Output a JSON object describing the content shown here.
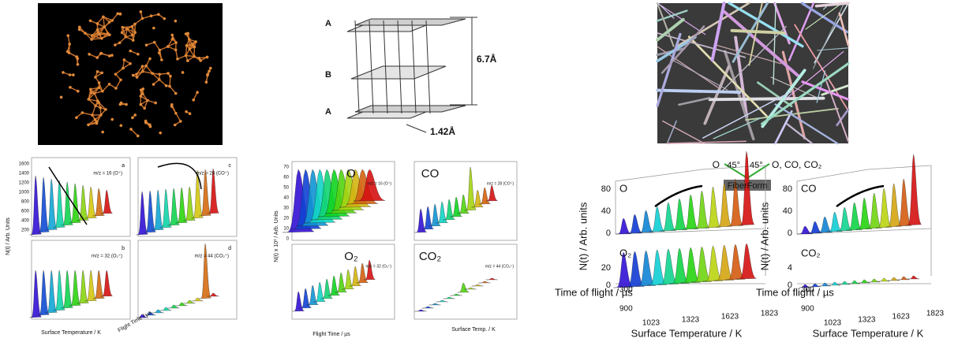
{
  "graphite": {
    "layer_labels": [
      "A",
      "B",
      "A"
    ],
    "interlayer_spacing": "6.7Å",
    "bond_length": "1.42Å"
  },
  "panel_a": {
    "subplots": [
      {
        "letter": "a",
        "label": "m/z = 16 (O⁺)"
      },
      {
        "letter": "c",
        "label": "m/z = 28 (CO⁺)"
      },
      {
        "letter": "b",
        "label": "m/z = 32 (O₂⁺)"
      },
      {
        "letter": "d",
        "label": "m/z = 44 (CO₂⁺)"
      }
    ],
    "y_ticks": [
      "1600",
      "1400",
      "1200",
      "1000",
      "800",
      "600",
      "400",
      "200"
    ],
    "y_axis_label": "N(t) / Arb. Units",
    "x_axis_label": "Surface Temperature / K",
    "z_axis_label": "Flight Time / µs"
  },
  "panel_b": {
    "species": [
      "O",
      "CO",
      "O₂",
      "CO₂"
    ],
    "labels": [
      "m/z = 16 (O⁺)",
      "m/z = 28 (CO⁺)",
      "m/z = 32 (O₂⁺)",
      "m/z = 44 (CO₂⁺)"
    ],
    "y_ticks": [
      "70",
      "60",
      "50",
      "40",
      "30",
      "20",
      "10",
      "0"
    ],
    "y_axis_label": "N(t) x 10³ / Arb. Units",
    "x_axis_label": "Flight Time / µs",
    "z_axis_label": "Surface Temp. / K"
  },
  "panel_c": {
    "geometry": {
      "incident": "O",
      "angle_in": "45°",
      "angle_out": "45°",
      "products": "O, CO, CO₂",
      "sample": "FiberForm"
    },
    "plots": [
      {
        "top_species": "O",
        "bottom_species": "O₂",
        "top_ticks": [
          "80",
          "40",
          "0"
        ],
        "bottom_ticks": [
          "20",
          "0"
        ]
      },
      {
        "top_species": "CO",
        "bottom_species": "CO₂",
        "top_ticks": [
          "80",
          "40",
          "0"
        ],
        "bottom_ticks": [
          "4",
          "0"
        ]
      }
    ],
    "y_axis_label": "N(t)  /  Arb. units",
    "time_label": "Time of flight  /  µs",
    "time_ticks": [
      "300",
      "900"
    ],
    "temp_ticks": [
      "1023",
      "1323",
      "1623",
      "1823"
    ],
    "temp_label": "Surface Temperature  /  K"
  }
}
